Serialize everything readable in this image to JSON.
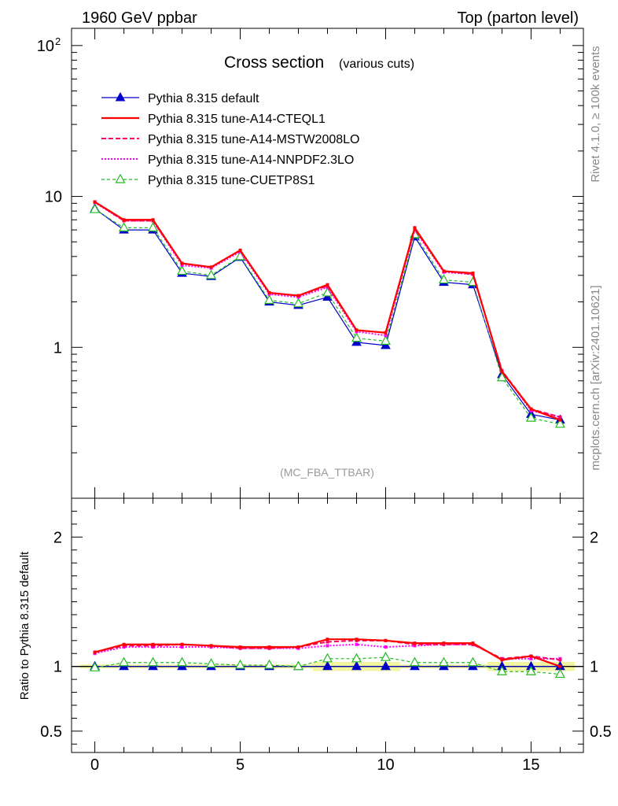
{
  "header": {
    "left": "1960 GeV ppbar",
    "right": "Top (parton level)"
  },
  "side_labels": {
    "rivet": "Rivet 4.1.0, ≥ 100k events",
    "mcplots": "mcplots.cern.ch [arXiv:2401.10621]"
  },
  "ratio_ylabel": "Ratio to Pythia 8.315 default",
  "chart_data": {
    "type": "line",
    "title": "Cross section",
    "subtitle": "(various cuts)",
    "watermark": "(MC_FBA_TTBAR)",
    "x": [
      0,
      1,
      2,
      3,
      4,
      5,
      6,
      7,
      8,
      9,
      10,
      11,
      12,
      13,
      14,
      15,
      16
    ],
    "xlim": [
      -0.8,
      16.8
    ],
    "x_ticks": [
      0,
      5,
      10,
      15
    ],
    "main": {
      "yscale": "log",
      "ylim": [
        0.1,
        130
      ],
      "y_ticks": [
        {
          "value": 100,
          "base": "10",
          "exp": "2"
        },
        {
          "value": 10,
          "base": "10",
          "exp": ""
        },
        {
          "value": 1,
          "base": "1",
          "exp": ""
        }
      ]
    },
    "ratio": {
      "ylim": [
        0.335,
        2.3
      ],
      "y_ticks": [
        "0.5",
        "1",
        "2"
      ],
      "band_color": "#f2f5a0"
    },
    "series": [
      {
        "name": "Pythia 8.315 default",
        "color": "#0000cc",
        "dash": "",
        "width": 1.2,
        "marker": "triangle-filled",
        "values": [
          8.3,
          6.0,
          6.0,
          3.1,
          2.95,
          3.95,
          2.0,
          1.9,
          2.15,
          1.08,
          1.03,
          5.4,
          2.7,
          2.6,
          0.66,
          0.36,
          0.33
        ]
      },
      {
        "name": "Pythia 8.315 tune-A14-CTEQL1",
        "color": "#ff0000",
        "dash": "",
        "width": 2.2,
        "marker": "none",
        "values": [
          9.2,
          7.0,
          7.0,
          3.6,
          3.4,
          4.4,
          2.3,
          2.2,
          2.6,
          1.3,
          1.25,
          6.2,
          3.2,
          3.1,
          0.69,
          0.39,
          0.33
        ]
      },
      {
        "name": "Pythia 8.315 tune-A14-MSTW2008LO",
        "color": "#ff0066",
        "dash": "6,3",
        "width": 2.0,
        "marker": "none",
        "values": [
          9.2,
          6.9,
          6.9,
          3.6,
          3.4,
          4.4,
          2.3,
          2.2,
          2.55,
          1.3,
          1.25,
          6.1,
          3.2,
          3.05,
          0.7,
          0.39,
          0.345
        ]
      },
      {
        "name": "Pythia 8.315 tune-A14-NNPDF2.3LO",
        "color": "#ff00ff",
        "dash": "2,2",
        "width": 2.0,
        "marker": "none",
        "values": [
          9.1,
          6.9,
          6.9,
          3.5,
          3.35,
          4.3,
          2.25,
          2.15,
          2.5,
          1.27,
          1.2,
          6.0,
          3.15,
          3.05,
          0.7,
          0.38,
          0.345
        ]
      },
      {
        "name": "Pythia 8.315 tune-CUETP8S1",
        "color": "#22bb22",
        "dash": "4,3",
        "width": 1.2,
        "marker": "triangle-open",
        "values": [
          8.2,
          6.2,
          6.2,
          3.2,
          3.0,
          4.0,
          2.05,
          1.95,
          2.3,
          1.15,
          1.1,
          5.6,
          2.8,
          2.7,
          0.63,
          0.34,
          0.31
        ]
      }
    ],
    "ratios": [
      [
        1.0,
        1.0,
        1.0,
        1.0,
        1.0,
        1.0,
        1.0,
        1.0,
        1.0,
        1.0,
        1.0,
        1.0,
        1.0,
        1.0,
        1.0,
        1.0,
        1.0
      ],
      [
        1.11,
        1.17,
        1.17,
        1.17,
        1.16,
        1.15,
        1.15,
        1.15,
        1.21,
        1.21,
        1.2,
        1.18,
        1.18,
        1.18,
        1.05,
        1.08,
        1.0
      ],
      [
        1.11,
        1.16,
        1.16,
        1.17,
        1.16,
        1.14,
        1.14,
        1.15,
        1.19,
        1.2,
        1.2,
        1.17,
        1.17,
        1.17,
        1.06,
        1.08,
        1.05
      ],
      [
        1.1,
        1.15,
        1.15,
        1.15,
        1.15,
        1.14,
        1.14,
        1.14,
        1.16,
        1.17,
        1.15,
        1.16,
        1.17,
        1.17,
        1.06,
        1.06,
        1.06
      ],
      [
        0.99,
        1.03,
        1.03,
        1.03,
        1.02,
        1.01,
        1.01,
        1.0,
        1.06,
        1.06,
        1.07,
        1.03,
        1.03,
        1.03,
        0.96,
        0.96,
        0.94
      ]
    ]
  }
}
